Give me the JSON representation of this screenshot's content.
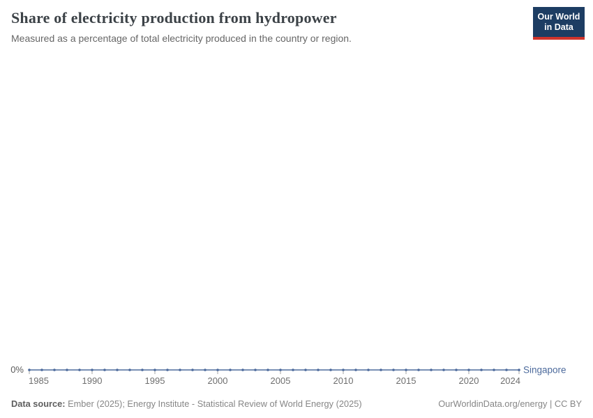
{
  "header": {
    "title": "Share of electricity production from hydropower",
    "subtitle": "Measured as a percentage of total electricity produced in the country or region.",
    "logo": {
      "line1": "Our World",
      "line2": "in Data"
    }
  },
  "chart_data": {
    "type": "line",
    "title": "Share of electricity production from hydropower",
    "xlabel": "",
    "ylabel": "",
    "grid": false,
    "legend": "inline-end-label",
    "x": [
      1985,
      1986,
      1987,
      1988,
      1989,
      1990,
      1991,
      1992,
      1993,
      1994,
      1995,
      1996,
      1997,
      1998,
      1999,
      2000,
      2001,
      2002,
      2003,
      2004,
      2005,
      2006,
      2007,
      2008,
      2009,
      2010,
      2011,
      2012,
      2013,
      2014,
      2015,
      2016,
      2017,
      2018,
      2019,
      2020,
      2021,
      2022,
      2023,
      2024
    ],
    "x_ticks": [
      1985,
      1990,
      1995,
      2000,
      2005,
      2010,
      2015,
      2020,
      2024
    ],
    "y_ticks": [
      {
        "value": 0,
        "label": "0%"
      }
    ],
    "series": [
      {
        "name": "Singapore",
        "color": "#4C6A9C",
        "values": [
          0,
          0,
          0,
          0,
          0,
          0,
          0,
          0,
          0,
          0,
          0,
          0,
          0,
          0,
          0,
          0,
          0,
          0,
          0,
          0,
          0,
          0,
          0,
          0,
          0,
          0,
          0,
          0,
          0,
          0,
          0,
          0,
          0,
          0,
          0,
          0,
          0,
          0,
          0,
          0
        ]
      }
    ]
  },
  "footer": {
    "source_label": "Data source:",
    "source_text": " Ember (2025); Energy Institute - Statistical Review of World Energy (2025)",
    "credit": "OurWorldinData.org/energy | CC BY"
  },
  "colors": {
    "line": "#4C6A9C",
    "logo_background": "#1d3d63",
    "logo_accent": "#d0342c",
    "tick": "#a3a3a3"
  }
}
